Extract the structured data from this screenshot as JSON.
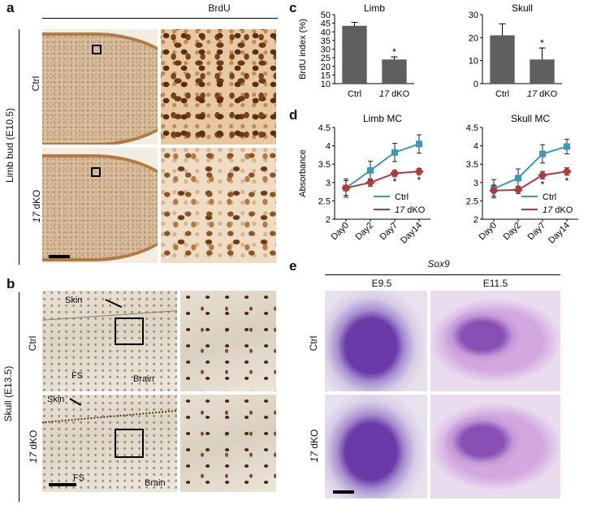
{
  "panels": {
    "a": {
      "letter": "a",
      "header": "BrdU",
      "side_label": "Limb bud (E10.5)",
      "row1": "Ctrl",
      "row2_italic": "17",
      "row2_rest": " dKO"
    },
    "b": {
      "letter": "b",
      "side_label": "Skull (E13.5)",
      "row1": "Ctrl",
      "row2_italic": "17",
      "row2_rest": " dKO",
      "skin": "Skin",
      "fs": "FS",
      "brain": "Brain"
    },
    "c": {
      "letter": "c"
    },
    "d": {
      "letter": "d"
    },
    "e": {
      "letter": "e",
      "gene": "Sox9",
      "col1": "E9.5",
      "col2": "E11.5",
      "row1": "Ctrl",
      "row2_italic": "17",
      "row2_rest": " dKO"
    }
  },
  "chart_data": [
    {
      "type": "bar",
      "title": "Limb",
      "ylabel": "BrdU index (%)",
      "categories": [
        "Ctrl",
        "17 dKO"
      ],
      "values": [
        43.5,
        24
      ],
      "errors": [
        2,
        1.5
      ],
      "significance": [
        "",
        "*"
      ],
      "ylim": [
        10,
        50
      ],
      "yticks": [
        10,
        15,
        20,
        25,
        30,
        35,
        40,
        45,
        50
      ],
      "color": "#5f5f5f"
    },
    {
      "type": "bar",
      "title": "Skull",
      "ylabel": "",
      "categories": [
        "Ctrl",
        "17 dKO"
      ],
      "values": [
        21,
        10.5
      ],
      "errors": [
        5,
        5
      ],
      "significance": [
        "",
        "*"
      ],
      "ylim": [
        0,
        30
      ],
      "yticks": [
        0,
        10,
        20,
        30
      ],
      "color": "#5f5f5f"
    },
    {
      "type": "line",
      "title": "Limb MC",
      "ylabel": "Absorbance",
      "categories": [
        "Day0",
        "Day2",
        "Day7",
        "Day14"
      ],
      "ylim": [
        2,
        4.5
      ],
      "yticks": [
        2,
        2.5,
        3,
        3.5,
        4,
        4.5
      ],
      "series": [
        {
          "name": "Ctrl",
          "values": [
            2.85,
            3.33,
            3.82,
            4.05
          ],
          "errors": [
            0.25,
            0.25,
            0.25,
            0.25
          ],
          "color": "#3a9ab8"
        },
        {
          "name": "17 dKO",
          "values": [
            2.85,
            3.0,
            3.25,
            3.3
          ],
          "errors": [
            0.2,
            0.1,
            0.08,
            0.08
          ],
          "color": "#b23a3a"
        }
      ],
      "significance": [
        "",
        "",
        "*",
        "*"
      ],
      "legend": "bottom-right"
    },
    {
      "type": "line",
      "title": "Skull MC",
      "ylabel": "",
      "categories": [
        "Day0",
        "Day2",
        "Day7",
        "Day14"
      ],
      "ylim": [
        2,
        4.5
      ],
      "yticks": [
        2,
        2.5,
        3,
        3.5,
        4,
        4.5
      ],
      "series": [
        {
          "name": "Ctrl",
          "values": [
            2.83,
            3.12,
            3.78,
            3.98
          ],
          "errors": [
            0.25,
            0.25,
            0.25,
            0.2
          ],
          "color": "#3a9ab8"
        },
        {
          "name": "17 dKO",
          "values": [
            2.78,
            2.8,
            3.2,
            3.3
          ],
          "errors": [
            0.15,
            0.1,
            0.1,
            0.1
          ],
          "color": "#b23a3a"
        }
      ],
      "significance": [
        "",
        "",
        "*",
        "*"
      ],
      "legend": "bottom-right"
    }
  ]
}
